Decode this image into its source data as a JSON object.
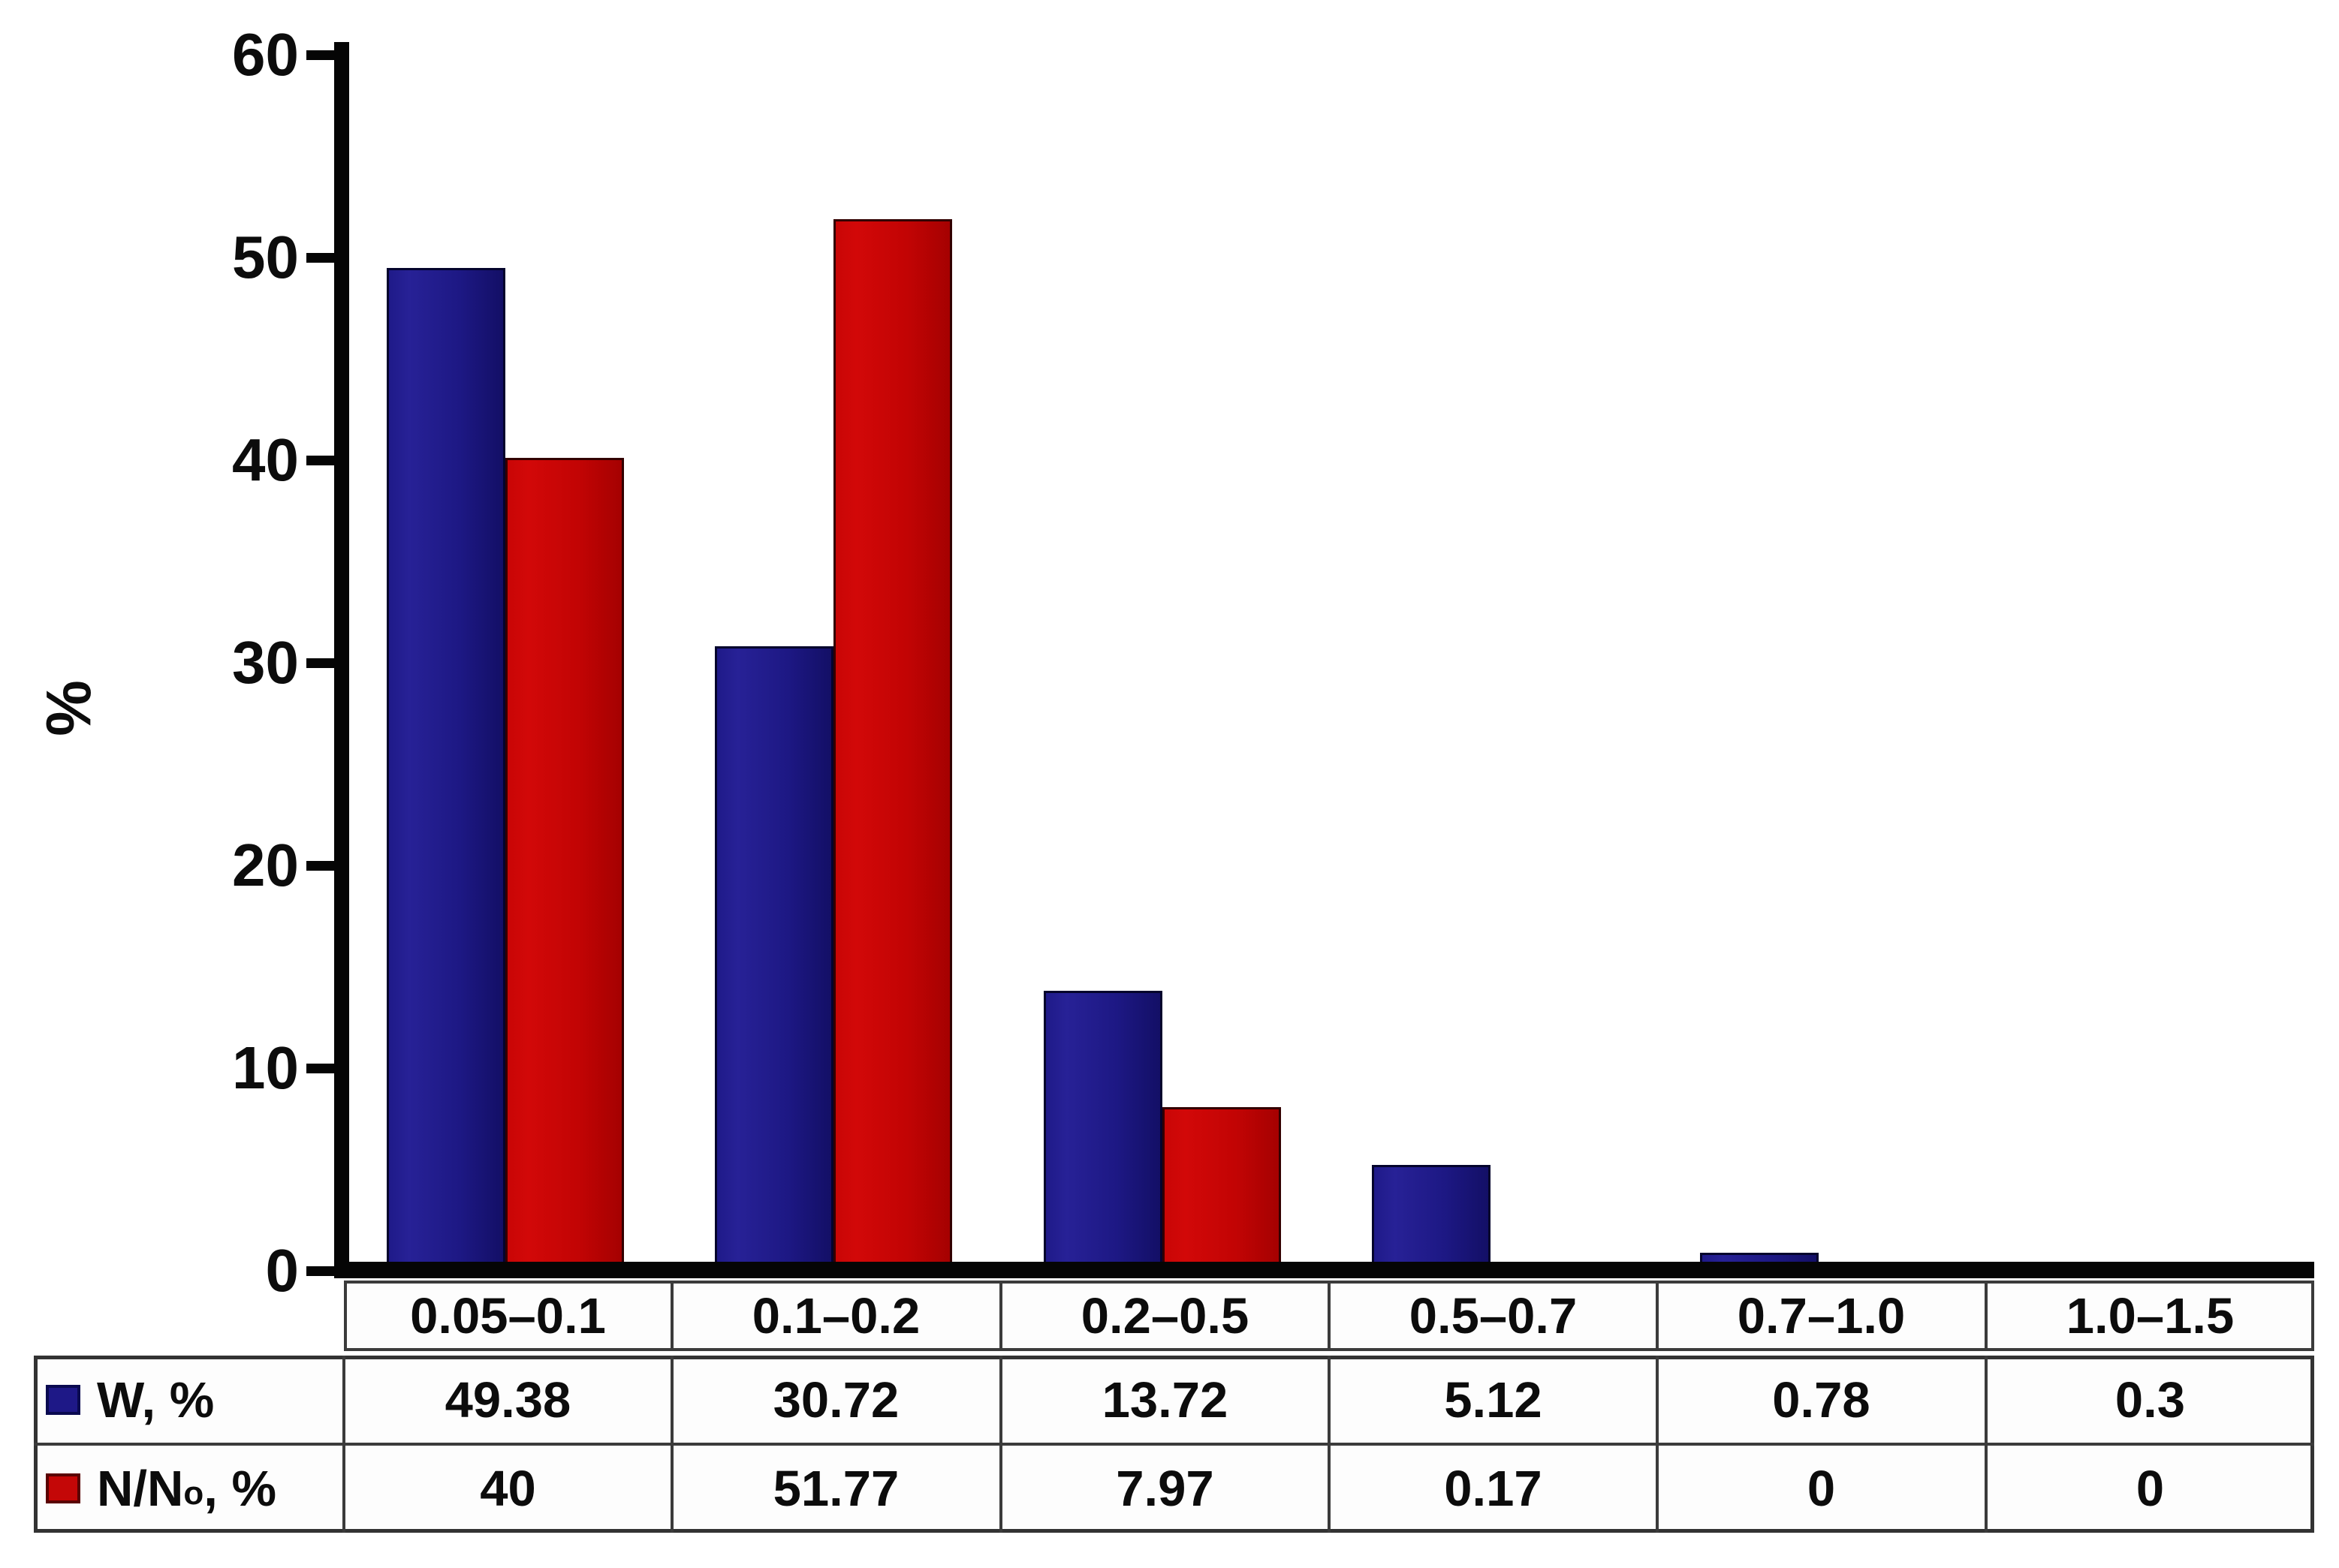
{
  "chart_data": {
    "type": "bar",
    "title": "",
    "xlabel": "",
    "ylabel": "%",
    "ylim": [
      0,
      60
    ],
    "yticks": [
      0,
      10,
      20,
      30,
      40,
      50,
      60
    ],
    "grid": false,
    "legend_position": "table-left-column",
    "categories": [
      "0.05–0.1",
      "0.1–0.2",
      "0.2–0.5",
      "0.5–0.7",
      "0.7–1.0",
      "1.0–1.5"
    ],
    "series": [
      {
        "name": "W, %",
        "label_prefix": "W",
        "label_sub": "",
        "label_suffix": ", %",
        "color": "#1e1887",
        "border_color": "#04042c",
        "values": [
          49.38,
          30.72,
          13.72,
          5.12,
          0.78,
          0.3
        ],
        "display_values": [
          "49.38",
          "30.72",
          "13.72",
          "5.12",
          "0.78",
          "0.3"
        ]
      },
      {
        "name": "N/No, %",
        "label_prefix": "N/N",
        "label_sub": "o",
        "label_suffix": ", %",
        "color": "#c40707",
        "border_color": "#320000",
        "values": [
          40,
          51.77,
          7.97,
          0.17,
          0,
          0
        ],
        "display_values": [
          "40",
          "51.77",
          "7.97",
          "0.17",
          "0",
          "0"
        ]
      }
    ]
  },
  "colors": {
    "background": "#ffffff",
    "axis": "#050505",
    "table_border": "#3b3b3b",
    "text": "#0c0c0c",
    "series_w": "#1e1887",
    "series_n": "#c40707"
  }
}
